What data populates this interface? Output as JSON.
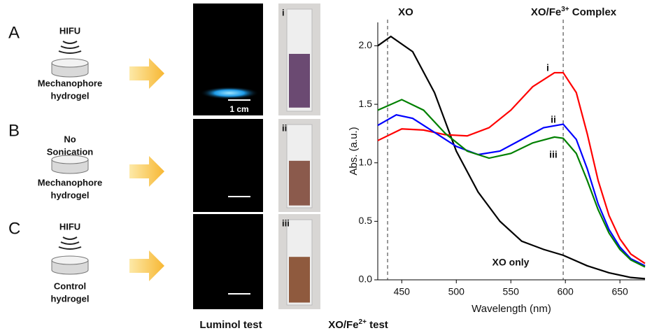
{
  "panels": [
    {
      "letter": "A",
      "top": [
        "HIFU"
      ],
      "bottom": [
        "Mechanophore",
        "hydrogel"
      ],
      "scale": "1 cm",
      "tube": "i"
    },
    {
      "letter": "B",
      "top": [
        "No",
        "Sonication"
      ],
      "bottom": [
        "Mechanophore",
        "hydrogel"
      ],
      "tube": "ii"
    },
    {
      "letter": "C",
      "top": [
        "HIFU"
      ],
      "bottom": [
        "Control",
        "hydrogel"
      ],
      "tube": "iii"
    }
  ],
  "captions": {
    "luminol": "Luminol test",
    "xo": {
      "text": "XO/Fe",
      "sup": "2+",
      "after": " test"
    }
  },
  "chart_data": {
    "type": "line",
    "x_label": "Wavelength (nm)",
    "y_label": "Abs. (a.u.)",
    "xlim": [
      428,
      673
    ],
    "ylim": [
      0,
      2.2
    ],
    "xticks": [
      450,
      500,
      550,
      600,
      650
    ],
    "yticks": [
      {
        "value": 0,
        "label": "0.0"
      },
      {
        "value": 0.5,
        "label": "0.5"
      },
      {
        "value": 1,
        "label": "1.0"
      },
      {
        "value": 1.5,
        "label": "1.5"
      },
      {
        "value": 2,
        "label": "2.0"
      }
    ],
    "reference_lines": [
      437,
      598
    ],
    "top_labels": {
      "left": "XO",
      "right": {
        "text": "XO/Fe",
        "sup": "3+",
        "after": " Complex"
      }
    },
    "series": [
      {
        "name": "XO only",
        "color": "#000000",
        "x": [
          428,
          440,
          460,
          480,
          500,
          520,
          540,
          560,
          580,
          598,
          620,
          640,
          660,
          673
        ],
        "values": [
          2.0,
          2.08,
          1.95,
          1.6,
          1.1,
          0.75,
          0.5,
          0.33,
          0.26,
          0.21,
          0.12,
          0.06,
          0.02,
          0.01
        ]
      },
      {
        "name": "i",
        "color": "#ff0000",
        "x": [
          428,
          450,
          470,
          490,
          510,
          530,
          550,
          570,
          590,
          598,
          610,
          620,
          630,
          640,
          650,
          660,
          673
        ],
        "values": [
          1.19,
          1.29,
          1.28,
          1.24,
          1.23,
          1.3,
          1.45,
          1.65,
          1.77,
          1.77,
          1.6,
          1.25,
          0.85,
          0.55,
          0.35,
          0.22,
          0.14
        ]
      },
      {
        "name": "ii",
        "color": "#0000ff",
        "x": [
          428,
          445,
          460,
          480,
          500,
          520,
          540,
          560,
          580,
          598,
          610,
          620,
          630,
          640,
          650,
          660,
          673
        ],
        "values": [
          1.32,
          1.41,
          1.38,
          1.26,
          1.14,
          1.07,
          1.1,
          1.2,
          1.3,
          1.33,
          1.2,
          0.95,
          0.65,
          0.43,
          0.28,
          0.18,
          0.12
        ]
      },
      {
        "name": "iii",
        "color": "#008000",
        "x": [
          428,
          450,
          470,
          490,
          510,
          530,
          550,
          570,
          590,
          598,
          610,
          620,
          630,
          640,
          650,
          660,
          673
        ],
        "values": [
          1.45,
          1.54,
          1.45,
          1.25,
          1.1,
          1.04,
          1.08,
          1.17,
          1.22,
          1.21,
          1.08,
          0.85,
          0.6,
          0.4,
          0.26,
          0.17,
          0.11
        ]
      }
    ]
  }
}
